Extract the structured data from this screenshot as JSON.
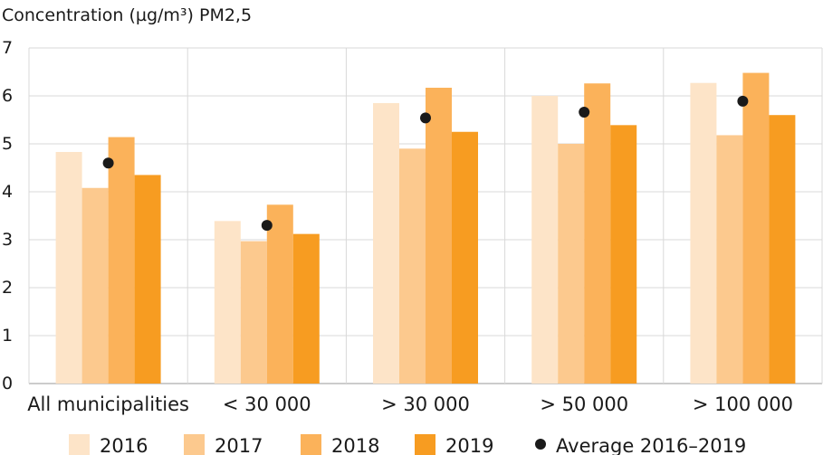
{
  "chart_data": {
    "type": "bar",
    "title": "",
    "ylabel": "Concentration (µg/m³) PM2,5",
    "xlabel": "",
    "ylim": [
      0,
      7
    ],
    "yticks": [
      0,
      1,
      2,
      3,
      4,
      5,
      6,
      7
    ],
    "grid": "vertical-category-dividers",
    "categories": [
      "All municipalities",
      "< 30 000",
      "> 30 000",
      "> 50 000",
      "> 100 000"
    ],
    "series": [
      {
        "name": "2016",
        "color": "#fde4c8",
        "values": [
          4.83,
          3.39,
          5.85,
          6.0,
          6.27
        ]
      },
      {
        "name": "2017",
        "color": "#fcc98e",
        "values": [
          4.08,
          2.97,
          4.9,
          5.0,
          5.18
        ]
      },
      {
        "name": "2018",
        "color": "#fbb25a",
        "values": [
          5.14,
          3.73,
          6.17,
          6.26,
          6.48
        ]
      },
      {
        "name": "2019",
        "color": "#f79c21",
        "values": [
          4.35,
          3.12,
          5.25,
          5.39,
          5.6
        ]
      }
    ],
    "average": {
      "name": "Average 2016–2019",
      "color": "#1a1a1a",
      "values": [
        4.6,
        3.3,
        5.54,
        5.66,
        5.89
      ]
    },
    "legend_position": "bottom"
  }
}
